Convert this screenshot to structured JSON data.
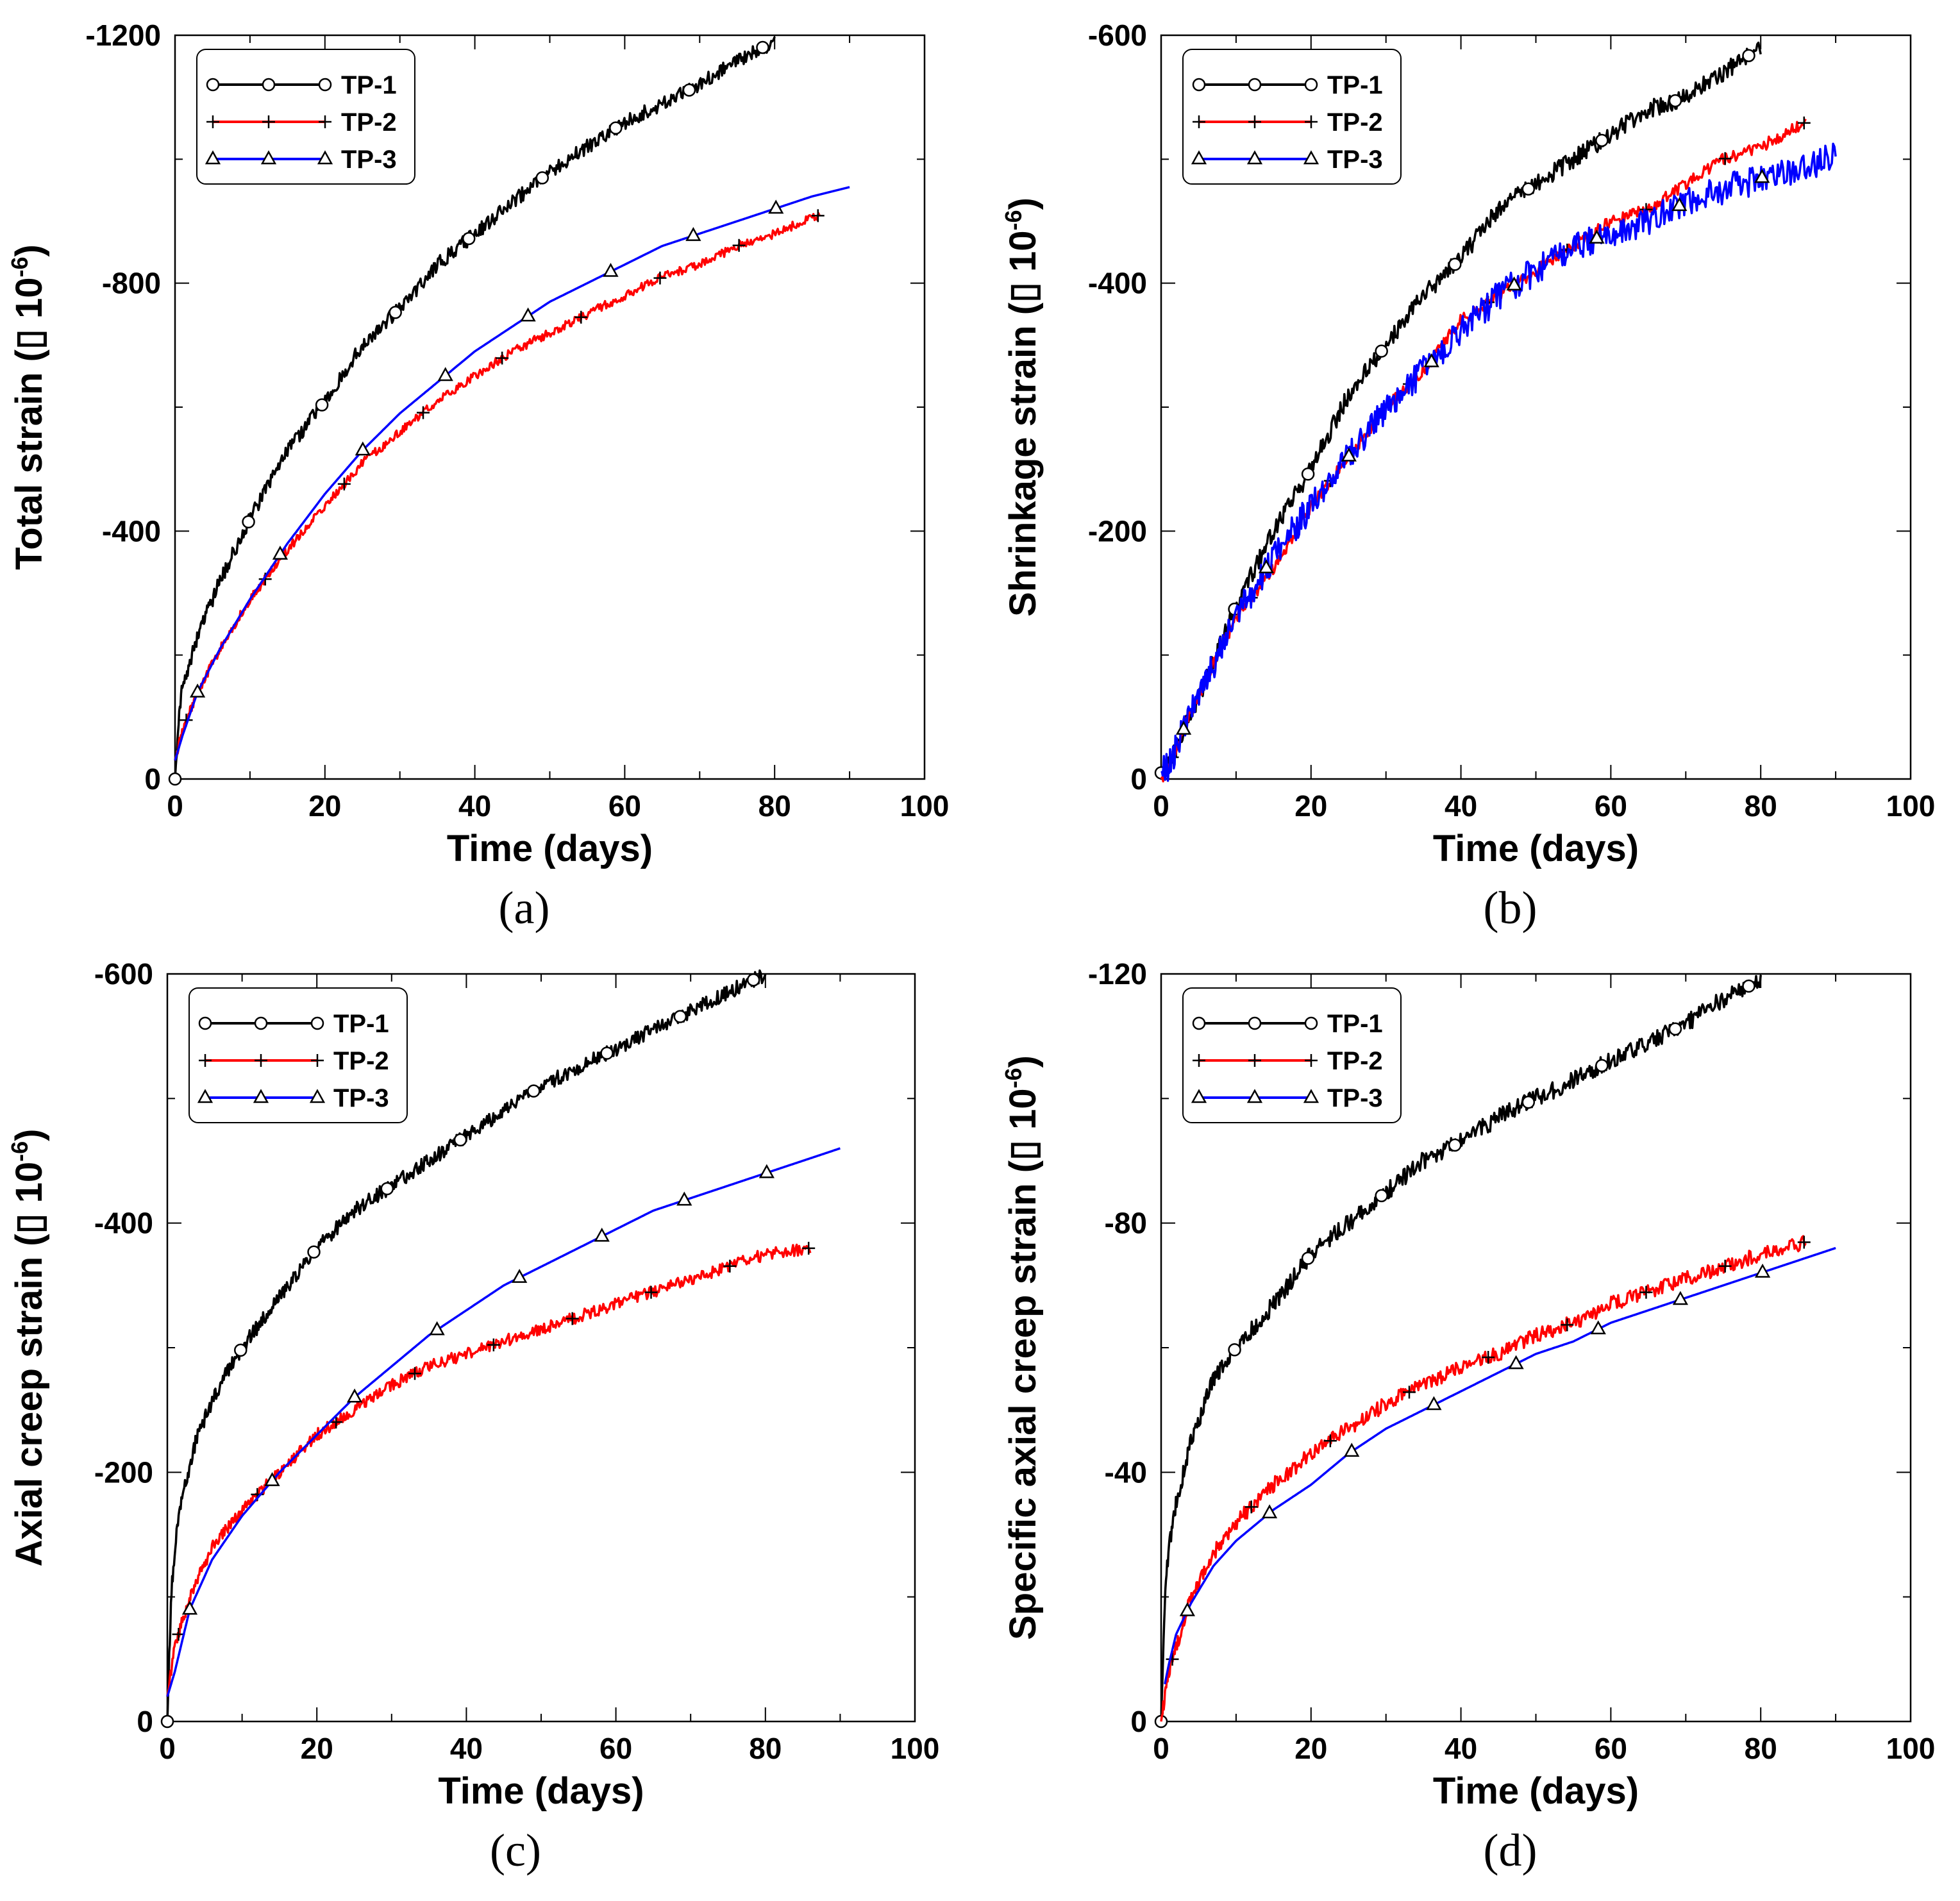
{
  "chart_data": [
    {
      "panel": "(a)",
      "type": "line",
      "xlabel": "Time (days)",
      "ylabel_prefix": "Total strain (",
      "ylabel_suffix": " 10",
      "ylabel_exp": "-6",
      "ylabel_close": ")",
      "xlim": [
        0,
        100
      ],
      "ylim": [
        0,
        -1200
      ],
      "xticks": [
        0,
        20,
        40,
        60,
        80,
        100
      ],
      "yticks": [
        0,
        -400,
        -800,
        -1200
      ],
      "legend_position": "top-left",
      "series": [
        {
          "name": "TP-1",
          "color": "#000000",
          "marker": "circle",
          "noise": 0.01,
          "x": [
            0,
            0.5,
            1,
            3,
            6,
            10,
            15,
            20,
            25,
            30,
            35,
            40,
            45,
            50,
            55,
            60,
            65,
            70,
            75,
            80
          ],
          "y": [
            0,
            -100,
            -150,
            -230,
            -320,
            -420,
            -530,
            -610,
            -700,
            -760,
            -830,
            -880,
            -930,
            -980,
            -1020,
            -1060,
            -1090,
            -1120,
            -1160,
            -1190
          ]
        },
        {
          "name": "TP-2",
          "color": "#ff0000",
          "marker": "plus",
          "noise": 0.006,
          "x": [
            0,
            1,
            3,
            6,
            10,
            15,
            20,
            25,
            30,
            35,
            40,
            45,
            50,
            55,
            60,
            65,
            70,
            75,
            80,
            86
          ],
          "y": [
            -30,
            -80,
            -140,
            -210,
            -290,
            -370,
            -440,
            -510,
            -560,
            -610,
            -650,
            -690,
            -720,
            -750,
            -780,
            -810,
            -830,
            -860,
            -880,
            -910
          ]
        },
        {
          "name": "TP-3",
          "color": "#0000ff",
          "marker": "triangle",
          "noise": 0,
          "x": [
            0,
            1,
            3,
            6,
            10,
            15,
            20,
            25,
            30,
            35,
            40,
            45,
            50,
            55,
            60,
            65,
            70,
            75,
            80,
            85,
            90
          ],
          "y": [
            -30,
            -70,
            -140,
            -210,
            -290,
            -380,
            -460,
            -530,
            -590,
            -640,
            -690,
            -730,
            -770,
            -800,
            -830,
            -860,
            -880,
            -900,
            -920,
            -940,
            -955
          ]
        }
      ]
    },
    {
      "panel": "(b)",
      "type": "line",
      "xlabel": "Time (days)",
      "ylabel_prefix": "Shrinkage strain (",
      "ylabel_suffix": " 10",
      "ylabel_exp": "-6",
      "ylabel_close": ")",
      "xlim": [
        0,
        100
      ],
      "ylim": [
        0,
        -600
      ],
      "xticks": [
        0,
        20,
        40,
        60,
        80,
        100
      ],
      "yticks": [
        0,
        -200,
        -400,
        -600
      ],
      "legend_position": "top-left",
      "series": [
        {
          "name": "TP-1",
          "color": "#000000",
          "marker": "circle",
          "noise": 0.012,
          "x": [
            0,
            1,
            3,
            6,
            10,
            15,
            20,
            25,
            30,
            35,
            40,
            45,
            50,
            55,
            60,
            65,
            70,
            75,
            80
          ],
          "y": [
            -5,
            -10,
            -40,
            -80,
            -140,
            -200,
            -250,
            -310,
            -350,
            -390,
            -420,
            -460,
            -480,
            -500,
            -520,
            -540,
            -550,
            -570,
            -590
          ]
        },
        {
          "name": "TP-2",
          "color": "#ff0000",
          "marker": "plus",
          "noise": 0.008,
          "x": [
            0,
            1,
            3,
            6,
            10,
            15,
            20,
            25,
            30,
            35,
            40,
            45,
            50,
            55,
            60,
            65,
            70,
            75,
            80,
            86
          ],
          "y": [
            0,
            -10,
            -40,
            -80,
            -130,
            -170,
            -220,
            -260,
            -300,
            -330,
            -370,
            -390,
            -410,
            -430,
            -450,
            -460,
            -480,
            -500,
            -510,
            -530
          ]
        },
        {
          "name": "TP-3",
          "color": "#0000ff",
          "marker": "triangle",
          "noise": 0.02,
          "x": [
            0,
            1,
            3,
            6,
            10,
            15,
            20,
            25,
            30,
            35,
            40,
            45,
            50,
            55,
            60,
            65,
            70,
            75,
            80,
            85,
            90
          ],
          "y": [
            -5,
            -10,
            -40,
            -80,
            -130,
            -180,
            -220,
            -260,
            -300,
            -330,
            -360,
            -390,
            -410,
            -430,
            -440,
            -450,
            -465,
            -475,
            -485,
            -490,
            -505
          ]
        }
      ]
    },
    {
      "panel": "(c)",
      "type": "line",
      "xlabel": "Time (days)",
      "ylabel_prefix": "Axial creep strain (",
      "ylabel_suffix": " 10",
      "ylabel_exp": "-6",
      "ylabel_close": ")",
      "xlim": [
        0,
        100
      ],
      "ylim": [
        0,
        -600
      ],
      "xticks": [
        0,
        20,
        40,
        60,
        80,
        100
      ],
      "yticks": [
        0,
        -200,
        -400,
        -600
      ],
      "legend_position": "top-left",
      "series": [
        {
          "name": "TP-1",
          "color": "#000000",
          "marker": "circle",
          "noise": 0.01,
          "x": [
            0,
            0.5,
            1,
            2,
            4,
            7,
            10,
            15,
            20,
            25,
            30,
            35,
            40,
            45,
            50,
            55,
            60,
            65,
            70,
            75,
            80
          ],
          "y": [
            0,
            -100,
            -140,
            -180,
            -230,
            -270,
            -300,
            -340,
            -380,
            -410,
            -430,
            -450,
            -470,
            -490,
            -510,
            -525,
            -540,
            -555,
            -570,
            -585,
            -600
          ]
        },
        {
          "name": "TP-2",
          "color": "#ff0000",
          "marker": "plus",
          "noise": 0.008,
          "x": [
            0,
            1,
            3,
            6,
            10,
            15,
            20,
            25,
            30,
            35,
            40,
            45,
            50,
            55,
            60,
            65,
            70,
            75,
            80,
            86
          ],
          "y": [
            -20,
            -60,
            -100,
            -140,
            -170,
            -200,
            -230,
            -250,
            -270,
            -285,
            -295,
            -305,
            -315,
            -325,
            -335,
            -345,
            -355,
            -365,
            -375,
            -380
          ]
        },
        {
          "name": "TP-3",
          "color": "#0000ff",
          "marker": "triangle",
          "noise": 0,
          "x": [
            0,
            1,
            3,
            6,
            10,
            15,
            20,
            25,
            30,
            35,
            40,
            45,
            50,
            55,
            60,
            65,
            70,
            75,
            80,
            85,
            90
          ],
          "y": [
            -20,
            -40,
            -90,
            -130,
            -165,
            -200,
            -230,
            -260,
            -285,
            -310,
            -330,
            -350,
            -365,
            -380,
            -395,
            -410,
            -420,
            -430,
            -440,
            -450,
            -460
          ]
        }
      ]
    },
    {
      "panel": "(d)",
      "type": "line",
      "xlabel": "Time (days)",
      "ylabel_prefix": "Specific axial creep strain (",
      "ylabel_suffix": " 10",
      "ylabel_exp": "-6",
      "ylabel_close": ")",
      "xlim": [
        0,
        100
      ],
      "ylim": [
        0,
        -120
      ],
      "xticks": [
        0,
        20,
        40,
        60,
        80,
        100
      ],
      "yticks": [
        0,
        -40,
        -80,
        -120
      ],
      "legend_position": "top-left",
      "series": [
        {
          "name": "TP-1",
          "color": "#000000",
          "marker": "circle",
          "noise": 0.012,
          "x": [
            0,
            0.5,
            1,
            2,
            4,
            7,
            10,
            15,
            20,
            25,
            30,
            35,
            40,
            45,
            50,
            55,
            60,
            65,
            70,
            75,
            80
          ],
          "y": [
            0,
            -20,
            -28,
            -35,
            -45,
            -55,
            -60,
            -67,
            -75,
            -80,
            -85,
            -90,
            -93,
            -97,
            -100,
            -103,
            -106,
            -109,
            -112,
            -116,
            -119
          ]
        },
        {
          "name": "TP-2",
          "color": "#ff0000",
          "marker": "plus",
          "noise": 0.01,
          "x": [
            0,
            1,
            2,
            4,
            7,
            10,
            15,
            20,
            25,
            30,
            35,
            40,
            45,
            50,
            55,
            60,
            65,
            70,
            75,
            80,
            86
          ],
          "y": [
            0,
            -8,
            -12,
            -20,
            -27,
            -32,
            -38,
            -43,
            -47,
            -51,
            -54,
            -57,
            -59,
            -62,
            -64,
            -67,
            -69,
            -71,
            -73,
            -75,
            -77
          ]
        },
        {
          "name": "TP-3",
          "color": "#0000ff",
          "marker": "triangle",
          "noise": 0,
          "x": [
            0.5,
            1,
            2,
            4,
            7,
            10,
            15,
            20,
            25,
            30,
            35,
            40,
            45,
            50,
            55,
            60,
            65,
            70,
            75,
            80,
            85,
            90
          ],
          "y": [
            -6,
            -9,
            -14,
            -19,
            -25,
            -29,
            -34,
            -38,
            -43,
            -47,
            -50,
            -53,
            -56,
            -59,
            -61,
            -64,
            -66,
            -68,
            -70,
            -72,
            -74,
            -76
          ]
        }
      ]
    }
  ]
}
